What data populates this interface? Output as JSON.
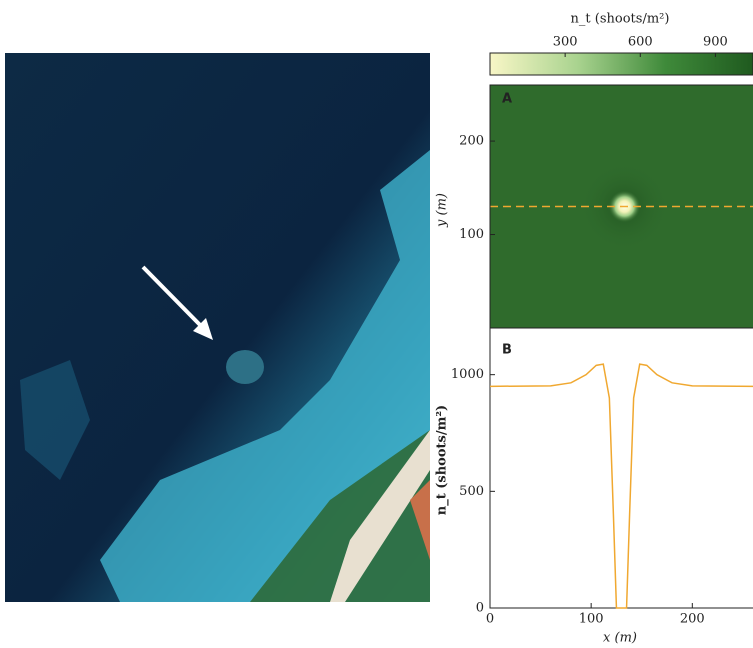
{
  "chart_data": [
    {
      "type": "colorbar",
      "title": "n_t (shoots/m²)",
      "clim": [
        0,
        1050
      ],
      "ticks": [
        300,
        600,
        900
      ],
      "colors": [
        "#f8f6c6",
        "#a9d38f",
        "#3f8a3a",
        "#1f5a1f"
      ]
    },
    {
      "type": "heatmap",
      "label": "A",
      "ylabel": "y (m)",
      "xlim": [
        0,
        260
      ],
      "ylim": [
        0,
        260
      ],
      "yticks": [
        100,
        200
      ],
      "hline": 130,
      "color": "#2f6b2c",
      "line_color": "#f0a830"
    },
    {
      "type": "line",
      "label": "B",
      "xlabel": "x (m)",
      "ylabel": "n_t (shoots/m²)",
      "xlim": [
        0,
        260
      ],
      "ylim": [
        0,
        1200
      ],
      "xticks": [
        0,
        100,
        200
      ],
      "yticks": [
        0,
        500,
        1000
      ],
      "color": "#f0a830",
      "x": [
        0,
        60,
        80,
        95,
        105,
        112,
        118,
        122,
        125,
        135,
        138,
        142,
        148,
        155,
        165,
        180,
        200,
        260
      ],
      "values": [
        950,
        952,
        965,
        1000,
        1040,
        1045,
        900,
        400,
        0,
        0,
        400,
        900,
        1045,
        1040,
        1000,
        965,
        952,
        950
      ]
    }
  ]
}
